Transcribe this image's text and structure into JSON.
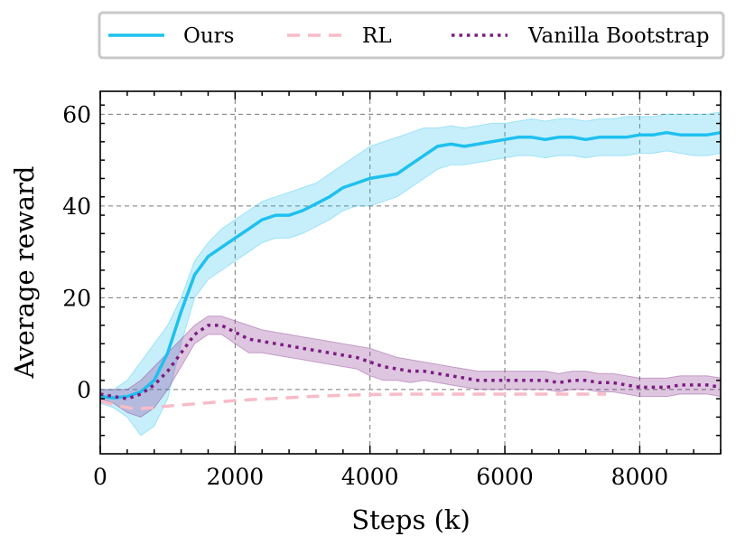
{
  "chart_data": {
    "type": "line",
    "xlabel": "Steps (k)",
    "ylabel": "Average reward",
    "xlim": [
      0,
      9200
    ],
    "ylim": [
      -14,
      65
    ],
    "x_ticks": [
      0,
      2000,
      4000,
      6000,
      8000
    ],
    "x_tick_labels": [
      "0",
      "2000",
      "4000",
      "6000",
      "8000"
    ],
    "y_ticks": [
      0,
      20,
      40,
      60
    ],
    "y_tick_labels": [
      "0",
      "20",
      "40",
      "60"
    ],
    "grid": true,
    "legend_position": "top",
    "series": [
      {
        "name": "Ours",
        "color": "#1ec0ef",
        "style": "solid",
        "x": [
          0,
          200,
          400,
          600,
          800,
          1000,
          1200,
          1400,
          1600,
          1800,
          2000,
          2200,
          2400,
          2600,
          2800,
          3000,
          3200,
          3400,
          3600,
          3800,
          4000,
          4200,
          4400,
          4600,
          4800,
          5000,
          5200,
          5400,
          5600,
          5800,
          6000,
          6200,
          6400,
          6600,
          6800,
          7000,
          7200,
          7400,
          7600,
          7800,
          8000,
          8200,
          8400,
          8600,
          8800,
          9000,
          9200
        ],
        "y": [
          -1.5,
          -1.8,
          -1.5,
          -0.5,
          2,
          8,
          17,
          25,
          29,
          31,
          33,
          35,
          37,
          38,
          38,
          39,
          40.5,
          42,
          44,
          45,
          46,
          46.5,
          47,
          49,
          51,
          53,
          53.5,
          53,
          53.5,
          54,
          54.5,
          55,
          55,
          54.5,
          55,
          55,
          54.5,
          55,
          55,
          55,
          55.5,
          55.5,
          56,
          55.5,
          55.5,
          55.5,
          56
        ],
        "upper": [
          0,
          0,
          2,
          6,
          10,
          14,
          20,
          28,
          32,
          35,
          37,
          39,
          41,
          42,
          43,
          44,
          45,
          47,
          49,
          51,
          53,
          54,
          55,
          56,
          57,
          57,
          57.5,
          57,
          57.5,
          58,
          58,
          58.5,
          59,
          58.5,
          59,
          59,
          58.5,
          59,
          59,
          59.5,
          59.5,
          59.5,
          60,
          60,
          60,
          60,
          60.5
        ],
        "lower": [
          -3,
          -4,
          -6,
          -10,
          -8,
          -2,
          10,
          20,
          24,
          26,
          28,
          30,
          32,
          33,
          33,
          34,
          35.5,
          37,
          39,
          40,
          40,
          41,
          42,
          44,
          46,
          48,
          49,
          49,
          49.5,
          50,
          50.5,
          51,
          51,
          50.5,
          51,
          51,
          50.5,
          51,
          51,
          51,
          51.5,
          51.5,
          52,
          51.5,
          51,
          51,
          51.5
        ]
      },
      {
        "name": "RL",
        "color": "#f7bcc8",
        "style": "dashed",
        "x": [
          0,
          250,
          500,
          750,
          1000,
          1500,
          2000,
          2500,
          3000,
          3500,
          4000,
          4500,
          5000,
          5500,
          6000,
          6500,
          7000,
          7500
        ],
        "y": [
          -2.5,
          -3.5,
          -4.2,
          -4,
          -3.6,
          -3,
          -2.4,
          -2,
          -1.6,
          -1.3,
          -1.1,
          -1,
          -1,
          -1,
          -1,
          -1,
          -1,
          -1
        ]
      },
      {
        "name": "Vanilla Bootstrap",
        "color": "#7b1c82",
        "style": "dotted",
        "x": [
          0,
          200,
          400,
          600,
          800,
          1000,
          1200,
          1400,
          1600,
          1800,
          2000,
          2200,
          2400,
          2600,
          2800,
          3000,
          3200,
          3400,
          3600,
          3800,
          4000,
          4200,
          4400,
          4600,
          4800,
          5000,
          5200,
          5400,
          5600,
          5800,
          6000,
          6200,
          6400,
          6600,
          6800,
          7000,
          7200,
          7400,
          7600,
          7800,
          8000,
          8200,
          8400,
          8600,
          8800,
          9000,
          9200
        ],
        "y": [
          -1,
          -1.5,
          -2,
          -1,
          1,
          4,
          8,
          12,
          14,
          14,
          12.5,
          11,
          10.5,
          10,
          9.5,
          9,
          8.5,
          8,
          7.5,
          7,
          6,
          5,
          4.5,
          4,
          4,
          3.5,
          3,
          2.5,
          2,
          2,
          2,
          2,
          2,
          2,
          1.5,
          2,
          2,
          1.5,
          1.5,
          1,
          0.5,
          0.5,
          0.5,
          1,
          1,
          1,
          0.5
        ],
        "upper": [
          0,
          0,
          0,
          2,
          5,
          8,
          11,
          14,
          16,
          16,
          15,
          14,
          13,
          12.5,
          12,
          11.5,
          11,
          10.5,
          10,
          9.5,
          9,
          8,
          7,
          6.5,
          6,
          5.5,
          5,
          4.5,
          4,
          4,
          4,
          4,
          4,
          4,
          3.5,
          4,
          4,
          3.5,
          3.5,
          3,
          2.5,
          2.5,
          2.5,
          3,
          3,
          3,
          2.5
        ],
        "lower": [
          -2,
          -3,
          -5,
          -6,
          -4,
          0,
          5,
          10,
          12,
          12,
          10,
          8,
          8,
          7.5,
          7,
          6.5,
          6,
          5.5,
          5,
          4.5,
          3,
          2,
          2,
          1.5,
          2,
          1.5,
          1,
          0.5,
          0,
          0,
          0,
          0,
          0,
          0,
          -0.5,
          0,
          0,
          -0.5,
          -0.5,
          -1,
          -1.5,
          -1.5,
          -1.5,
          -1,
          -1,
          -1,
          -1.5
        ]
      }
    ]
  }
}
